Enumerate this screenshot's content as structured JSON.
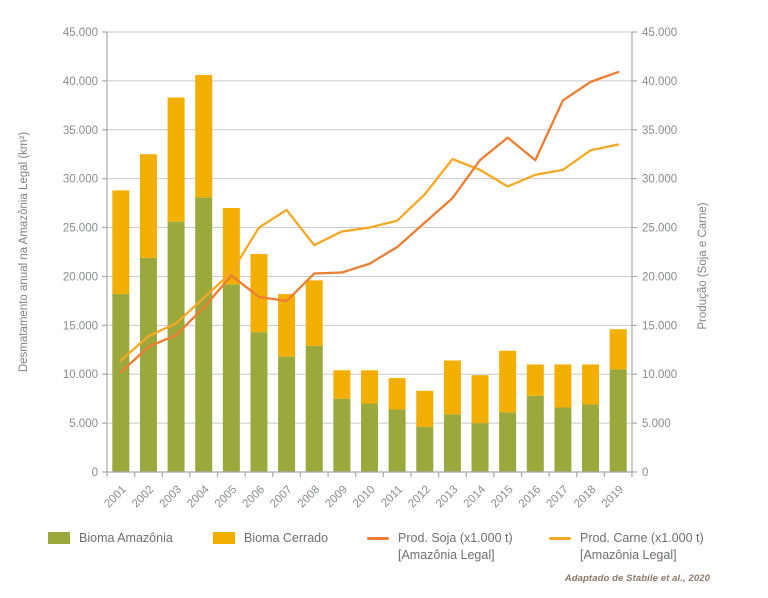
{
  "chart_data": {
    "type": "bar",
    "title": "",
    "categories": [
      "2001",
      "2002",
      "2003",
      "2004",
      "2005",
      "2006",
      "2007",
      "2008",
      "2009",
      "2010",
      "2011",
      "2012",
      "2013",
      "2014",
      "2015",
      "2016",
      "2017",
      "2018",
      "2019"
    ],
    "series": [
      {
        "name": "Bioma Amazônia",
        "type": "bar",
        "stack": "desmatamento",
        "color": "#9AA83C",
        "values": [
          18200,
          21900,
          25600,
          28100,
          19200,
          14300,
          11800,
          12900,
          7500,
          7000,
          6400,
          4600,
          5900,
          5000,
          6100,
          7800,
          6600,
          6900,
          10500
        ]
      },
      {
        "name": "Bioma Cerrado",
        "type": "bar",
        "stack": "desmatamento",
        "color": "#F2AF00",
        "values": [
          10600,
          10600,
          12700,
          12500,
          7800,
          8000,
          6400,
          6700,
          2900,
          3400,
          3200,
          3700,
          5500,
          4900,
          6300,
          3200,
          4400,
          4100,
          4100
        ]
      },
      {
        "name": "Prod. Soja (x1.000 t) [Amazônia Legal]",
        "type": "line",
        "color": "#ED7D31",
        "values": [
          10200,
          12800,
          14000,
          16800,
          20100,
          17900,
          17500,
          20300,
          20400,
          21300,
          23000,
          25500,
          28000,
          31900,
          34200,
          31900,
          38000,
          39900,
          40900
        ]
      },
      {
        "name": "Prod. Carne (x1.000 t) [Amazônia Legal]",
        "type": "line",
        "color": "#F7A823",
        "values": [
          11400,
          13900,
          15200,
          17800,
          20400,
          25000,
          26800,
          23200,
          24600,
          25000,
          25700,
          28400,
          32000,
          30900,
          29200,
          30400,
          30900,
          32900,
          33500
        ]
      }
    ],
    "left_axis": {
      "label": "Desmatamento anual na Amazônia Legal (km²)",
      "min": 0,
      "max": 45000,
      "step": 5000,
      "tick_labels": [
        "0",
        "5.000",
        "10.000",
        "15.000",
        "20.000",
        "25.000",
        "30.000",
        "35.000",
        "40.000",
        "45.000"
      ]
    },
    "right_axis": {
      "label": "Produção (Soja e Carne)",
      "min": 0,
      "max": 45000,
      "step": 5000,
      "tick_labels": [
        "0",
        "5.000",
        "10.000",
        "15.000",
        "20.000",
        "25.000",
        "30.000",
        "35.000",
        "40.000",
        "45.000"
      ]
    },
    "grid": true,
    "legend_position": "bottom",
    "colors": {
      "grid": "#C9CACB",
      "axis": "#A7A9AC",
      "tick_text": "#898B8E",
      "axis_title_text": "#808285"
    }
  },
  "legend": {
    "items": [
      {
        "label": "Bioma Amazônia",
        "mark": "swatch",
        "color": "#9AA83C"
      },
      {
        "label": "Bioma Cerrado",
        "mark": "swatch",
        "color": "#F2AF00"
      },
      {
        "label": "Prod. Soja (x1.000 t)",
        "sublabel": "[Amazônia Legal]",
        "mark": "line",
        "color": "#ED7D31"
      },
      {
        "label": "Prod. Carne (x1.000 t)",
        "sublabel": "[Amazônia Legal]",
        "mark": "line",
        "color": "#F7A823"
      }
    ]
  },
  "footer": {
    "credit": "Adaptado de Stabile et al., 2020"
  }
}
